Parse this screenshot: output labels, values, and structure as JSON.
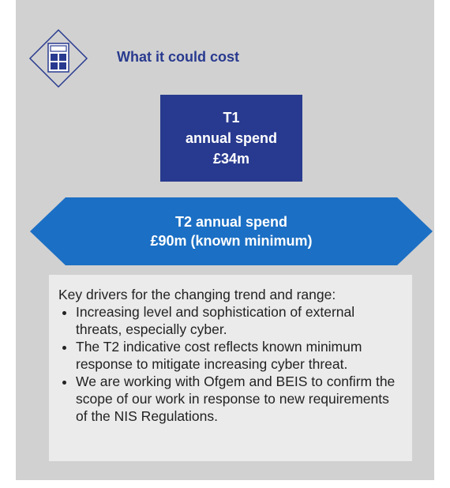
{
  "header": {
    "title": "What it could cost"
  },
  "t1": {
    "lines": [
      "T1",
      "annual spend",
      "£34m"
    ]
  },
  "t2": {
    "lines": [
      "T2 annual spend",
      "£90m (known minimum)"
    ]
  },
  "drivers": {
    "intro": "Key drivers for the changing trend and range:",
    "bullets": [
      "Increasing level and sophistication of external threats, especially cyber.",
      "The T2 indicative cost reflects known minimum response to mitigate increasing cyber threat.",
      "We are working with Ofgem and BEIS to confirm the scope of our work in response to new requirements of the NIS Regulations."
    ]
  }
}
